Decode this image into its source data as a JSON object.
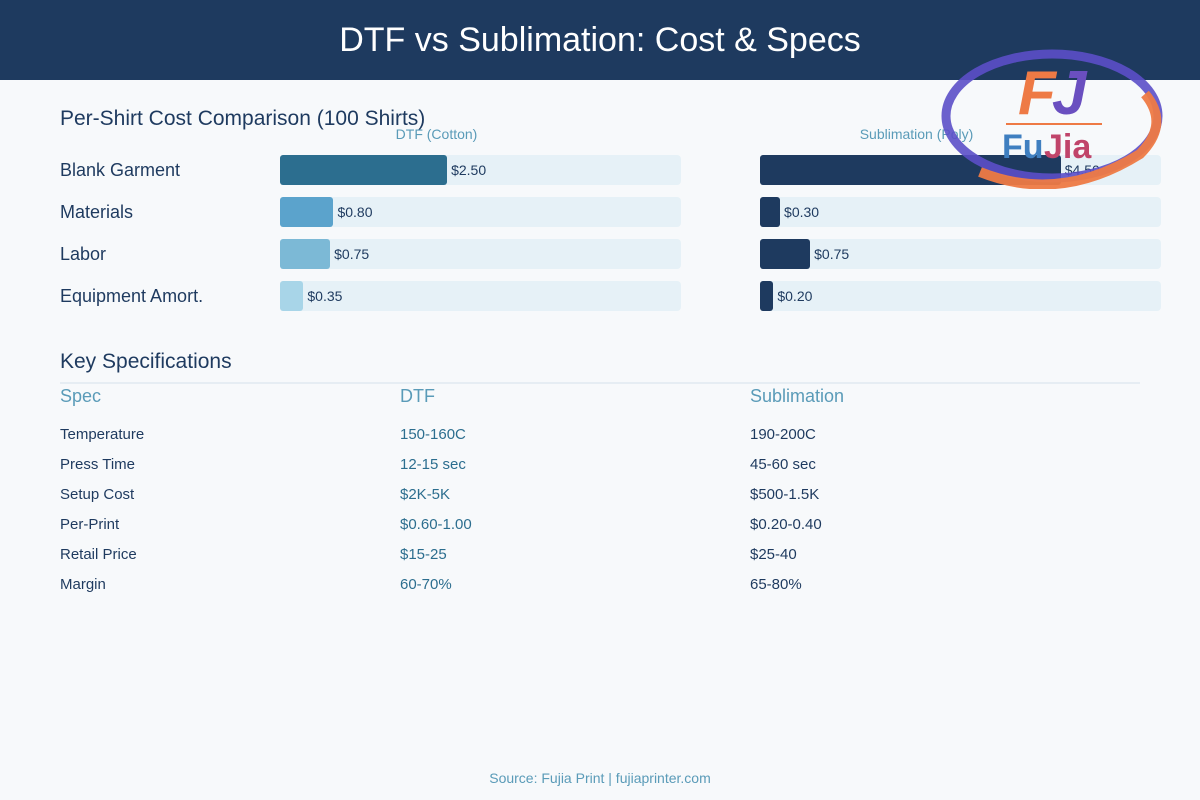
{
  "header": {
    "title": "DTF vs Sublimation: Cost & Specs"
  },
  "logo": {
    "text_f": "F",
    "text_j": "J",
    "word_fu": "Fu",
    "word_jia": "Jia"
  },
  "cost_section": {
    "title": "Per-Shirt Cost Comparison (100 Shirts)"
  },
  "specs_section": {
    "title": "Key Specifications"
  },
  "footer": {
    "source": "Source: Fujia Print | fujiaprinter.com"
  },
  "colors": {
    "header": "#1e3a5f",
    "dtf_bars": [
      "#2c6e8f",
      "#5ba3cc",
      "#7cb9d6",
      "#a8d5e8"
    ],
    "sublimation_bar": "#1e3a5f",
    "track": "#e6f1f7"
  },
  "chart_data": {
    "type": "bar",
    "orientation": "horizontal",
    "title": "Per-Shirt Cost Comparison (100 Shirts)",
    "categories": [
      "Blank Garment",
      "Materials",
      "Labor",
      "Equipment Amort."
    ],
    "xlim": [
      0,
      6
    ],
    "series": [
      {
        "name": "DTF (Cotton)",
        "values": [
          2.5,
          0.8,
          0.75,
          0.35
        ],
        "labels": [
          "$2.50",
          "$0.80",
          "$0.75",
          "$0.35"
        ]
      },
      {
        "name": "Sublimation (Poly)",
        "values": [
          4.5,
          0.3,
          0.75,
          0.2
        ],
        "labels": [
          "$4.50",
          "$0.30",
          "$0.75",
          "$0.20"
        ]
      }
    ]
  },
  "specs": {
    "columns": [
      "Spec",
      "DTF",
      "Sublimation"
    ],
    "rows": [
      [
        "Temperature",
        "150-160C",
        "190-200C"
      ],
      [
        "Press Time",
        "12-15 sec",
        "45-60 sec"
      ],
      [
        "Setup Cost",
        "$2K-5K",
        "$500-1.5K"
      ],
      [
        "Per-Print",
        "$0.60-1.00",
        "$0.20-0.40"
      ],
      [
        "Retail Price",
        "$15-25",
        "$25-40"
      ],
      [
        "Margin",
        "60-70%",
        "65-80%"
      ]
    ]
  }
}
